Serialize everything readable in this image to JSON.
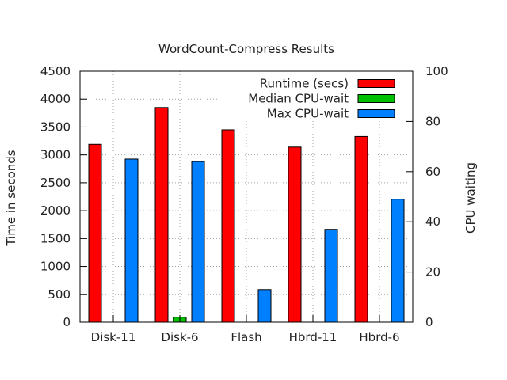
{
  "chart_data": {
    "type": "bar",
    "title": "WordCount-Compress Results",
    "ylabel": "Time in seconds",
    "y2label": "CPU waiting",
    "categories": [
      "Disk-11",
      "Disk-6",
      "Flash",
      "Hbrd-11",
      "Hbrd-6"
    ],
    "ylim": [
      0,
      4500
    ],
    "y2lim": [
      0,
      100
    ],
    "yticks": [
      0,
      500,
      1000,
      1500,
      2000,
      2500,
      3000,
      3500,
      4000,
      4500
    ],
    "y2ticks": [
      0,
      20,
      40,
      60,
      80,
      100
    ],
    "grid": true,
    "legend_position": "top-right",
    "series": [
      {
        "name": "Runtime (secs)",
        "axis": "left",
        "color": "#ff0000",
        "values": [
          3190,
          3850,
          3450,
          3140,
          3330
        ]
      },
      {
        "name": "Median CPU-wait",
        "axis": "right",
        "color": "#00c000",
        "values": [
          0,
          2,
          0,
          0,
          0
        ]
      },
      {
        "name": "Max CPU-wait",
        "axis": "right",
        "color": "#0080ff",
        "values": [
          65,
          64,
          13,
          37,
          49
        ]
      }
    ]
  }
}
